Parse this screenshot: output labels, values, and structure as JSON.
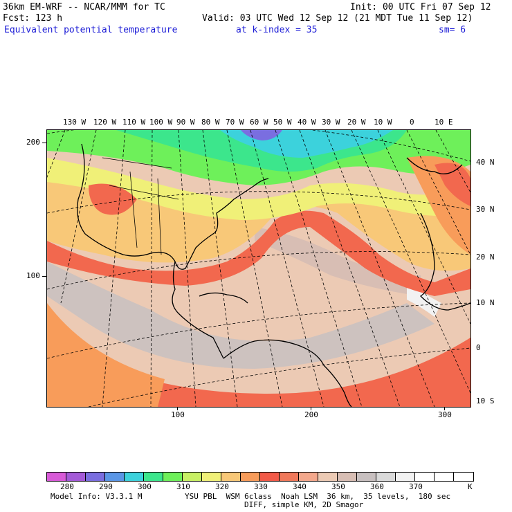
{
  "header": {
    "model_title": "36km EM-WRF -- NCAR/MMM for TC",
    "init": "Init: 00 UTC Fri 07 Sep 12",
    "forecast": "Fcst: 123 h",
    "valid": "Valid: 03 UTC Wed 12 Sep 12 (21 MDT Tue 11 Sep 12)",
    "field": "Equivalent potential temperature",
    "level": "at k-index = 35",
    "smoothing": "sm= 6"
  },
  "map": {
    "lon_labels": [
      "130 W",
      "120 W",
      "110 W",
      "100 W",
      "90 W",
      "80 W",
      "70 W",
      "60 W",
      "50 W",
      "40 W",
      "30 W",
      "20 W",
      "10 W",
      "0",
      "10 E"
    ],
    "lat_labels": [
      "40 N",
      "30 N",
      "20 N",
      "10 N",
      "0",
      "10 S"
    ],
    "grid_y_labels": [
      "200",
      "100"
    ],
    "grid_x_labels": [
      "100",
      "200",
      "300"
    ]
  },
  "colorbar": {
    "colors": [
      "#d85ad8",
      "#a45ad8",
      "#7a6ee0",
      "#5a96e6",
      "#3cd2dc",
      "#3ce68c",
      "#6ef05a",
      "#c8f064",
      "#f0f078",
      "#f8c878",
      "#f89c5a",
      "#f25a48",
      "#f0785a",
      "#f4a88c",
      "#eccab4",
      "#d8beb4",
      "#c8c0c0",
      "#dadada",
      "#f2f2f2",
      "#ffffff",
      "#ffffff",
      "#ffffff"
    ],
    "labels": [
      "280",
      "290",
      "300",
      "310",
      "320",
      "330",
      "340",
      "350",
      "360",
      "370"
    ],
    "unit": "K"
  },
  "footer": {
    "model_info": "Model Info: V3.3.1 M",
    "physics": "YSU PBL  WSM 6class  Noah LSM  36 km,  35 levels,  180 sec",
    "diff": "DIFF, simple KM, 2D Smagor"
  }
}
